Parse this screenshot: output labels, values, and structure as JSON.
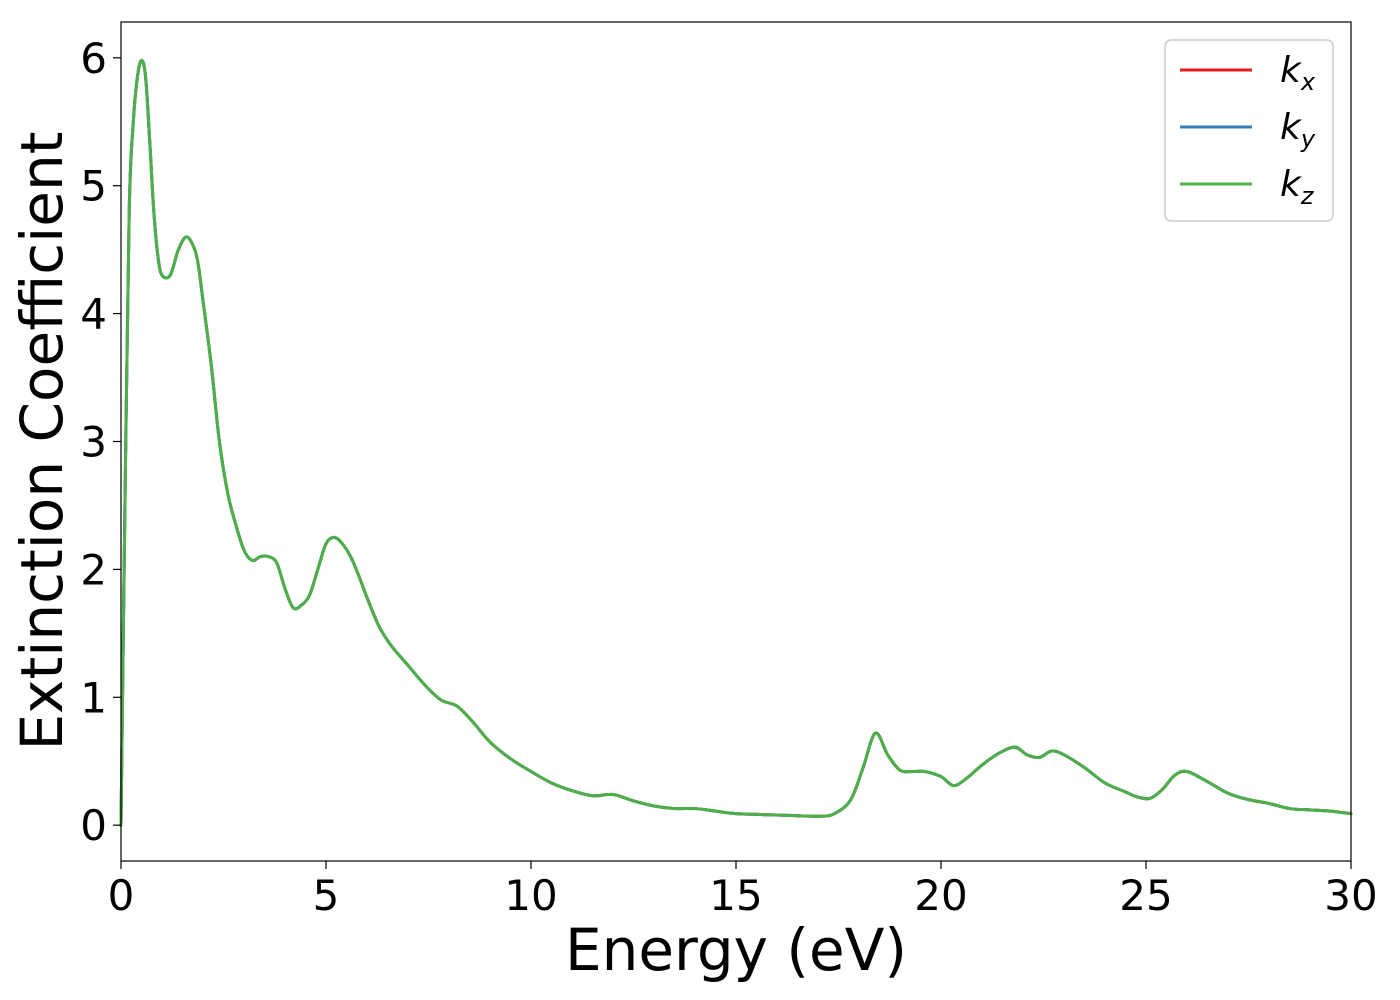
{
  "chart_data": {
    "type": "line",
    "xlabel": "Energy (eV)",
    "ylabel": "Extinction Coefficient",
    "xlim": [
      0,
      30
    ],
    "ylim": [
      -0.28,
      6.28
    ],
    "xticks": [
      0,
      5,
      10,
      15,
      20,
      25,
      30
    ],
    "xtick_labels": [
      "0",
      "5",
      "10",
      "15",
      "20",
      "25",
      "30"
    ],
    "yticks": [
      0,
      1,
      2,
      3,
      4,
      5,
      6
    ],
    "ytick_labels": [
      "0",
      "1",
      "2",
      "3",
      "4",
      "5",
      "6"
    ],
    "grid": false,
    "legend_position": "top-right",
    "x": [
      0,
      0.1,
      0.2,
      0.3,
      0.4,
      0.5,
      0.6,
      0.7,
      0.8,
      0.9,
      1.0,
      1.2,
      1.4,
      1.6,
      1.8,
      1.9,
      2.0,
      2.2,
      2.4,
      2.6,
      2.8,
      3.0,
      3.2,
      3.4,
      3.6,
      3.8,
      4.0,
      4.2,
      4.4,
      4.6,
      4.8,
      5.0,
      5.2,
      5.4,
      5.6,
      5.8,
      6.0,
      6.3,
      6.6,
      7.0,
      7.4,
      7.8,
      8.2,
      8.6,
      9.0,
      9.5,
      10.0,
      10.5,
      11.0,
      11.5,
      12.0,
      12.5,
      13.0,
      13.5,
      14.0,
      14.5,
      15.0,
      16.0,
      17.0,
      17.4,
      17.8,
      18.1,
      18.4,
      18.7,
      19.0,
      19.3,
      19.6,
      20.0,
      20.3,
      20.6,
      21.0,
      21.4,
      21.8,
      22.1,
      22.4,
      22.7,
      23.0,
      23.5,
      24.0,
      24.5,
      24.8,
      25.1,
      25.4,
      25.7,
      26.0,
      26.5,
      27.0,
      27.5,
      28.0,
      28.5,
      29.0,
      29.5,
      30.0
    ],
    "series": [
      {
        "name": "k_x",
        "label_base": "k",
        "label_sub": "x",
        "color": "#e41a1c",
        "values": [
          0.0,
          2.6,
          4.8,
          5.5,
          5.85,
          5.98,
          5.85,
          5.35,
          4.8,
          4.45,
          4.3,
          4.3,
          4.5,
          4.6,
          4.5,
          4.35,
          4.1,
          3.6,
          3.0,
          2.6,
          2.35,
          2.15,
          2.07,
          2.1,
          2.1,
          2.05,
          1.85,
          1.7,
          1.72,
          1.8,
          2.0,
          2.2,
          2.25,
          2.2,
          2.1,
          1.95,
          1.78,
          1.55,
          1.4,
          1.25,
          1.1,
          0.98,
          0.93,
          0.8,
          0.65,
          0.52,
          0.42,
          0.33,
          0.27,
          0.23,
          0.24,
          0.19,
          0.15,
          0.13,
          0.13,
          0.11,
          0.09,
          0.08,
          0.07,
          0.09,
          0.2,
          0.45,
          0.72,
          0.55,
          0.43,
          0.42,
          0.42,
          0.38,
          0.31,
          0.36,
          0.47,
          0.56,
          0.61,
          0.55,
          0.53,
          0.58,
          0.55,
          0.45,
          0.33,
          0.26,
          0.22,
          0.21,
          0.28,
          0.39,
          0.42,
          0.34,
          0.25,
          0.2,
          0.17,
          0.13,
          0.12,
          0.11,
          0.09
        ]
      },
      {
        "name": "k_y",
        "label_base": "k",
        "label_sub": "y",
        "color": "#377eb8",
        "values": [
          0.0,
          2.6,
          4.8,
          5.5,
          5.85,
          5.98,
          5.85,
          5.35,
          4.8,
          4.45,
          4.3,
          4.3,
          4.5,
          4.6,
          4.5,
          4.35,
          4.1,
          3.6,
          3.0,
          2.6,
          2.35,
          2.15,
          2.07,
          2.1,
          2.1,
          2.05,
          1.85,
          1.7,
          1.72,
          1.8,
          2.0,
          2.2,
          2.25,
          2.2,
          2.1,
          1.95,
          1.78,
          1.55,
          1.4,
          1.25,
          1.1,
          0.98,
          0.93,
          0.8,
          0.65,
          0.52,
          0.42,
          0.33,
          0.27,
          0.23,
          0.24,
          0.19,
          0.15,
          0.13,
          0.13,
          0.11,
          0.09,
          0.08,
          0.07,
          0.09,
          0.2,
          0.45,
          0.72,
          0.55,
          0.43,
          0.42,
          0.42,
          0.38,
          0.31,
          0.36,
          0.47,
          0.56,
          0.61,
          0.55,
          0.53,
          0.58,
          0.55,
          0.45,
          0.33,
          0.26,
          0.22,
          0.21,
          0.28,
          0.39,
          0.42,
          0.34,
          0.25,
          0.2,
          0.17,
          0.13,
          0.12,
          0.11,
          0.09
        ]
      },
      {
        "name": "k_z",
        "label_base": "k",
        "label_sub": "z",
        "color": "#4daf4a",
        "values": [
          0.0,
          2.6,
          4.8,
          5.5,
          5.85,
          5.98,
          5.85,
          5.35,
          4.8,
          4.45,
          4.3,
          4.3,
          4.5,
          4.6,
          4.5,
          4.35,
          4.1,
          3.6,
          3.0,
          2.6,
          2.35,
          2.15,
          2.07,
          2.1,
          2.1,
          2.05,
          1.85,
          1.7,
          1.72,
          1.8,
          2.0,
          2.2,
          2.25,
          2.2,
          2.1,
          1.95,
          1.78,
          1.55,
          1.4,
          1.25,
          1.1,
          0.98,
          0.93,
          0.8,
          0.65,
          0.52,
          0.42,
          0.33,
          0.27,
          0.23,
          0.24,
          0.19,
          0.15,
          0.13,
          0.13,
          0.11,
          0.09,
          0.08,
          0.07,
          0.09,
          0.2,
          0.45,
          0.72,
          0.55,
          0.43,
          0.42,
          0.42,
          0.38,
          0.31,
          0.36,
          0.47,
          0.56,
          0.61,
          0.55,
          0.53,
          0.58,
          0.55,
          0.45,
          0.33,
          0.26,
          0.22,
          0.21,
          0.28,
          0.39,
          0.42,
          0.34,
          0.25,
          0.2,
          0.17,
          0.13,
          0.12,
          0.11,
          0.09
        ]
      }
    ]
  }
}
